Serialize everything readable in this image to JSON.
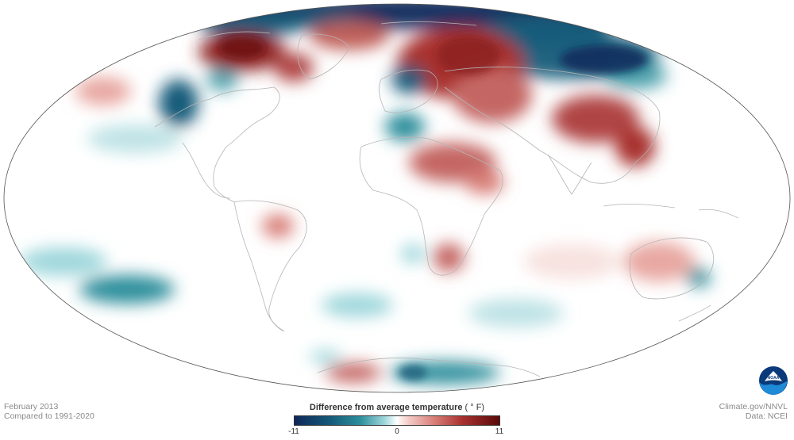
{
  "caption": {
    "date": "February 2013",
    "baseline": "Compared to 1991-2020"
  },
  "credits": {
    "site": "Climate.gov/NNVL",
    "data": "Data: NCEI"
  },
  "legend": {
    "title": "Difference from average temperature",
    "unit": "( ° F)",
    "min_label": "-11",
    "mid_label": "0",
    "max_label": "11",
    "min_color": "#0e2759",
    "mid_color": "#ffffff",
    "max_color": "#5a0a0a"
  },
  "logo": {
    "text": "NOAA"
  },
  "map": {
    "projection": "mollweide",
    "variable": "temperature anomaly",
    "warm_color": "#a8302f",
    "cool_color": "#155c7a",
    "coastline_color": "#b5b5b5",
    "outline_color": "#555555"
  }
}
